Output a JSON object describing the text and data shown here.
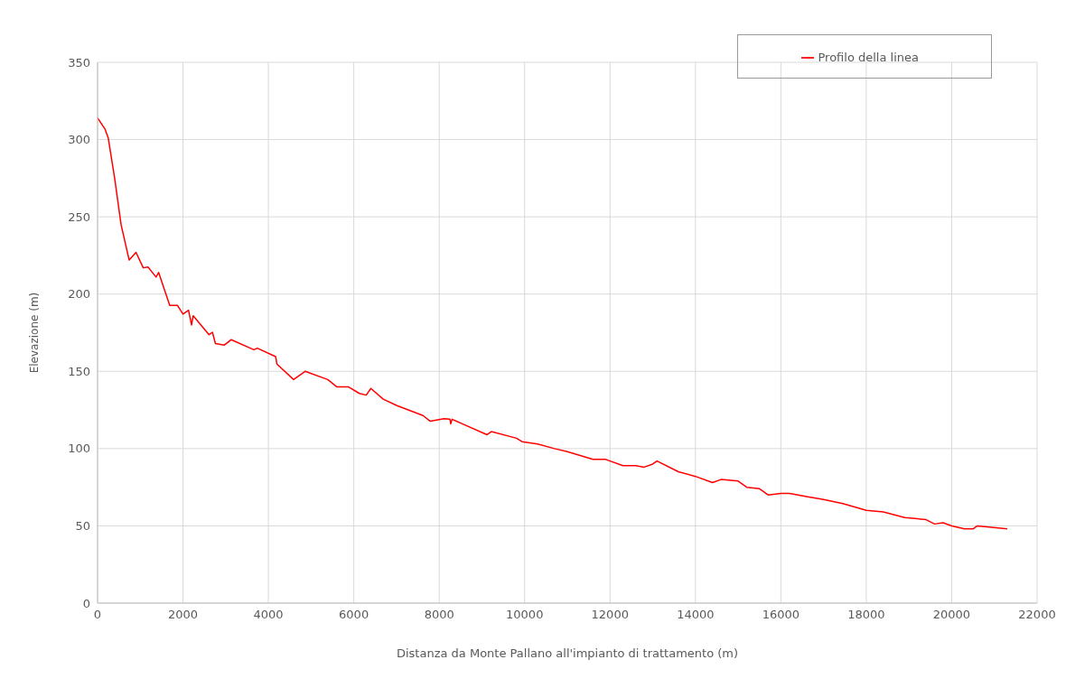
{
  "chart_data": {
    "type": "line",
    "xlabel": "Distanza da Monte Pallano all'impianto di trattamento (m)",
    "ylabel": "Elevazione (m)",
    "xlim": [
      0,
      22000
    ],
    "xticks": [
      0,
      2000,
      4000,
      6000,
      8000,
      10000,
      12000,
      14000,
      16000,
      18000,
      20000,
      22000
    ],
    "ylim": [
      0,
      350
    ],
    "yticks": [
      0,
      50,
      100,
      150,
      200,
      250,
      300,
      350
    ],
    "grid": true,
    "legend": "top right",
    "marker": "none",
    "line_style": "solid",
    "series": [
      {
        "name": "Profilo della linea",
        "color": "#ff0000",
        "x": [
          0,
          170,
          250,
          400,
          550,
          740,
          900,
          1070,
          1180,
          1370,
          1430,
          1690,
          1870,
          2000,
          2130,
          2200,
          2240,
          2610,
          2690,
          2760,
          2970,
          3130,
          3660,
          3740,
          4170,
          4200,
          4590,
          4860,
          5390,
          5600,
          5870,
          6130,
          6290,
          6400,
          6690,
          7010,
          7620,
          7790,
          8110,
          8250,
          8270,
          8300,
          9120,
          9220,
          9810,
          9940,
          10300,
          10700,
          11000,
          11600,
          11900,
          12300,
          12600,
          12800,
          13000,
          13100,
          13600,
          14000,
          14400,
          14600,
          15000,
          15200,
          15500,
          15700,
          16000,
          16200,
          16400,
          16600,
          17000,
          17450,
          18000,
          18400,
          18900,
          19400,
          19600,
          19800,
          20000,
          20300,
          20500,
          20600,
          21300
        ],
        "values": [
          314,
          307,
          301,
          275,
          245,
          222,
          227,
          217,
          217.5,
          211,
          214,
          192.7,
          192.7,
          187,
          189.5,
          180,
          186,
          173.7,
          175.3,
          168,
          167,
          170.5,
          164,
          165,
          159.5,
          154.7,
          144.7,
          150,
          144.7,
          140,
          140,
          135.7,
          134.6,
          138.9,
          132,
          127.8,
          121.4,
          117.7,
          119.3,
          119,
          116,
          119,
          109,
          111,
          106.7,
          104.5,
          103,
          100,
          98,
          93,
          93,
          89,
          89,
          88,
          90,
          92,
          85,
          82,
          78,
          80,
          79,
          75,
          74,
          70,
          71,
          71,
          70,
          69,
          67,
          64.4,
          60,
          59,
          55.4,
          54,
          51.2,
          52,
          50,
          48,
          48,
          50,
          48
        ]
      }
    ]
  }
}
